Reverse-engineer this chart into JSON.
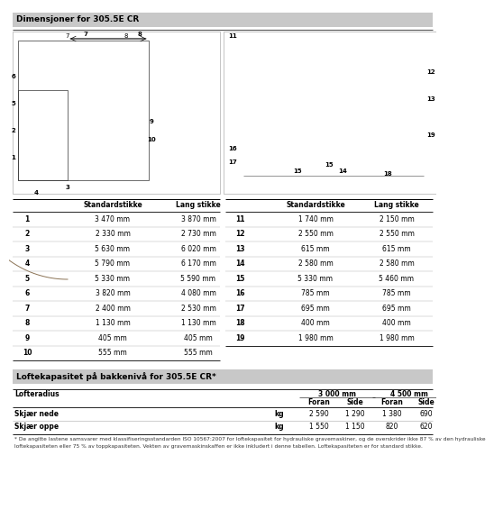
{
  "title1": "Dimensjoner for 305.5E CR",
  "title2": "Loftekapasitet på bakkenivå for 305.5E CR*",
  "table1_header": [
    "",
    "Standardstikke",
    "Lang stikke"
  ],
  "table1_rows": [
    [
      "1",
      "3 470 mm",
      "3 870 mm"
    ],
    [
      "2",
      "2 330 mm",
      "2 730 mm"
    ],
    [
      "3",
      "5 630 mm",
      "6 020 mm"
    ],
    [
      "4",
      "5 790 mm",
      "6 170 mm"
    ],
    [
      "5",
      "5 330 mm",
      "5 590 mm"
    ],
    [
      "6",
      "3 820 mm",
      "4 080 mm"
    ],
    [
      "7",
      "2 400 mm",
      "2 530 mm"
    ],
    [
      "8",
      "1 130 mm",
      "1 130 mm"
    ],
    [
      "9",
      "405 mm",
      "405 mm"
    ],
    [
      "10",
      "555 mm",
      "555 mm"
    ]
  ],
  "table2_header": [
    "",
    "Standardstikke",
    "Lang stikke"
  ],
  "table2_rows": [
    [
      "11",
      "1 740 mm",
      "2 150 mm"
    ],
    [
      "12",
      "2 550 mm",
      "2 550 mm"
    ],
    [
      "13",
      "615 mm",
      "615 mm"
    ],
    [
      "14",
      "2 580 mm",
      "2 580 mm"
    ],
    [
      "15",
      "5 330 mm",
      "5 460 mm"
    ],
    [
      "16",
      "785 mm",
      "785 mm"
    ],
    [
      "17",
      "695 mm",
      "695 mm"
    ],
    [
      "18",
      "400 mm",
      "400 mm"
    ],
    [
      "19",
      "1 980 mm",
      "1 980 mm"
    ]
  ],
  "lift_rows": [
    [
      "Skjær nede",
      "kg",
      "2 590",
      "1 290",
      "1 380",
      "690"
    ],
    [
      "Skjær oppe",
      "kg",
      "1 550",
      "1 150",
      "820",
      "620"
    ]
  ],
  "footnote_line1": "* De angitte lastene samsvarer med klassifiseringsstandarden ISO 10567:2007 for loftekapasitet for hydrauliske gravemaskiner, og de overskrider ikke 87 % av den hydrauliske",
  "footnote_line2": "loftekapasiteten eller 75 % av toppkapasiteten. Vekten av gravemaskinskaffen er ikke inkludert i denne tabellen. Loftekapasiteten er for standard stikke.",
  "header_gray": "#c8c8c8",
  "light_gray": "#e8e8e8",
  "mid_gray": "#b0b0b0",
  "img_area_color": "#f5f5f5"
}
